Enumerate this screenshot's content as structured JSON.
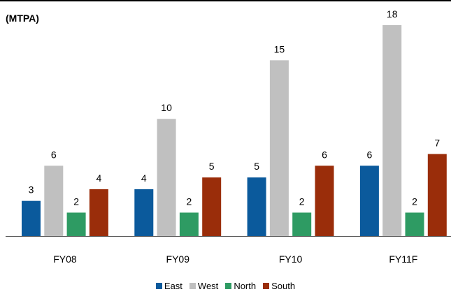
{
  "chart_data": {
    "type": "bar",
    "unit_label": "(MTPA)",
    "categories": [
      "FY08",
      "FY09",
      "FY10",
      "FY11F"
    ],
    "series": [
      {
        "name": "East",
        "color": "#0B5A9C",
        "values": [
          3,
          4,
          5,
          6
        ]
      },
      {
        "name": "West",
        "color": "#C0C0C0",
        "values": [
          6,
          10,
          15,
          18
        ]
      },
      {
        "name": "North",
        "color": "#2E9B63",
        "values": [
          2,
          2,
          2,
          2
        ]
      },
      {
        "name": "South",
        "color": "#9A2D0A",
        "values": [
          4,
          5,
          6,
          7
        ]
      }
    ],
    "ylim": [
      0,
      18
    ],
    "grid": false,
    "legend_position": "bottom"
  }
}
